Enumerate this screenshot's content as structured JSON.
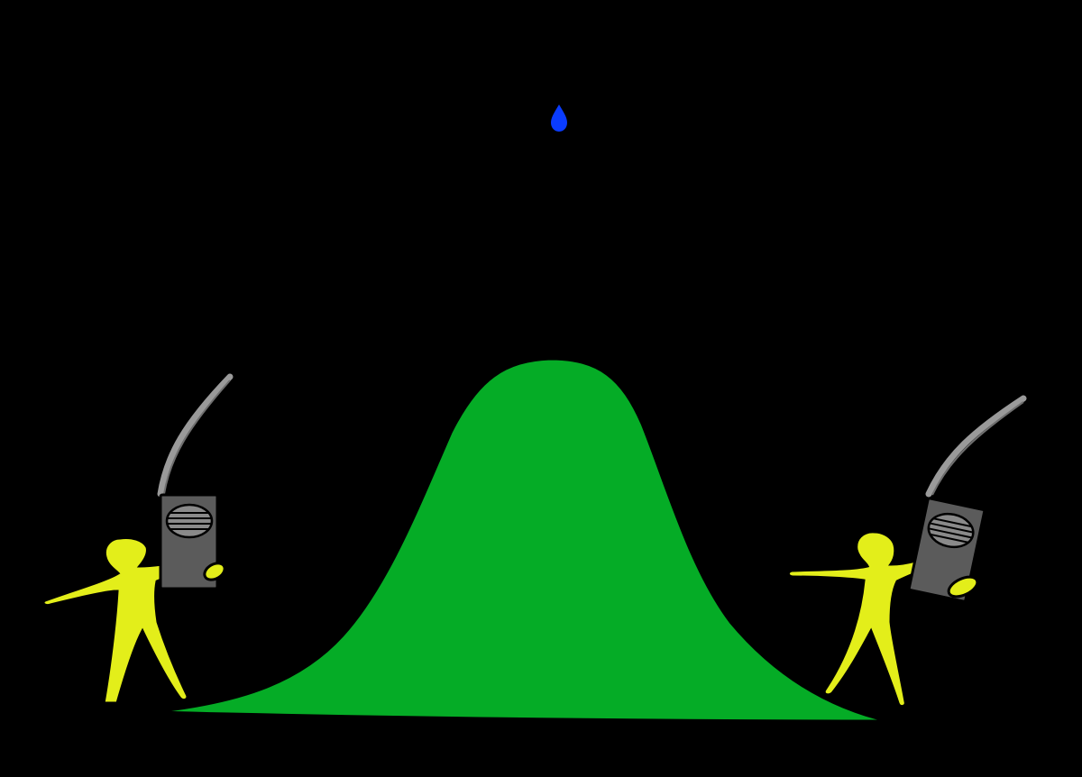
{
  "colors": {
    "background": "#000000",
    "hill": "#05ac26",
    "person": "#e3ee1a",
    "radio_body": "#5b5b5b",
    "radio_outline": "#000000",
    "antenna": "#9a9a9a",
    "drop": "#0a3cff"
  },
  "scene": {
    "hill": {
      "shape": "bell-curve"
    },
    "drop": {
      "icon": "water-drop-icon"
    },
    "people": [
      {
        "id": "left",
        "holds": "walkie-talkie",
        "icon": "person-icon"
      },
      {
        "id": "right",
        "holds": "walkie-talkie",
        "icon": "person-icon"
      }
    ]
  }
}
